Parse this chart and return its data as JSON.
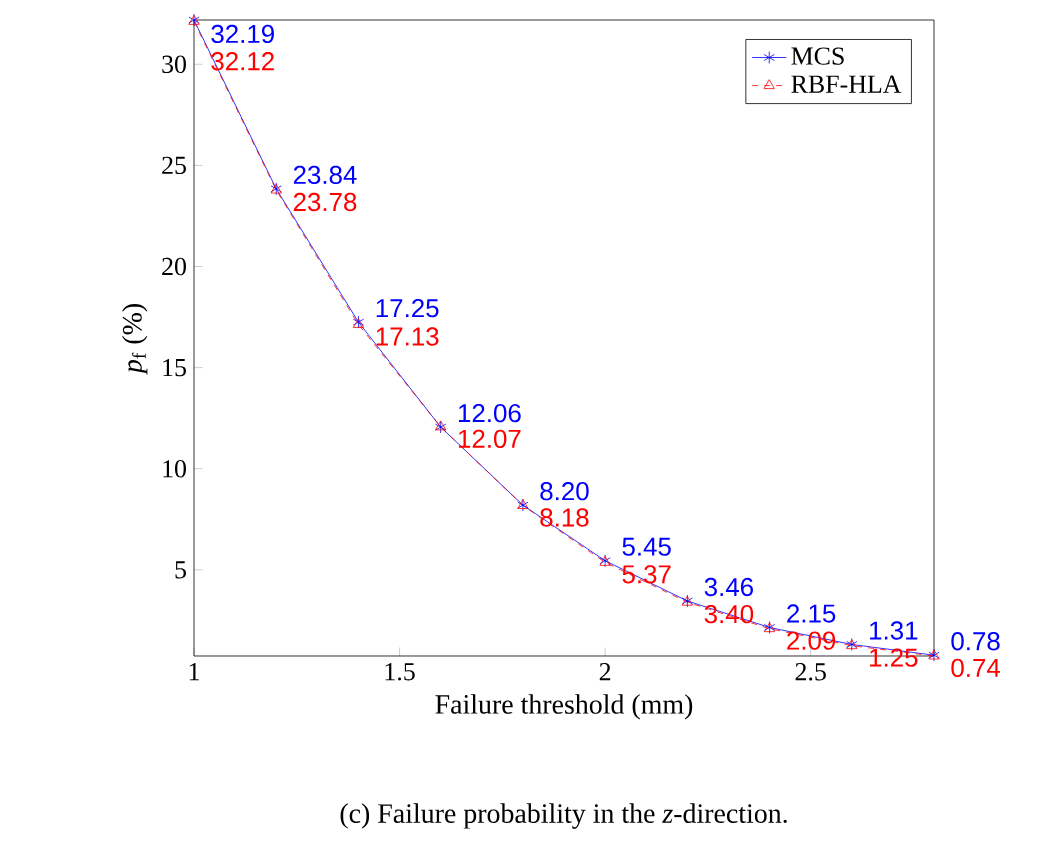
{
  "chart_data": {
    "type": "line",
    "xlabel": "Failure threshold (mm)",
    "ylabel": "*p*$_{f}$ (%)",
    "x": [
      1,
      1.2,
      1.4,
      1.6,
      1.8,
      2,
      2.2,
      2.4,
      2.6,
      2.8
    ],
    "series": [
      {
        "name": "MCS",
        "color": "#0000ff",
        "marker": "cross",
        "line_style": "solid",
        "values": [
          32.19,
          23.84,
          17.25,
          12.06,
          8.2,
          5.45,
          3.46,
          2.15,
          1.31,
          0.78
        ],
        "value_labels": [
          "32.19",
          "23.84",
          "17.25",
          "12.06",
          "8.20",
          "5.45",
          "3.46",
          "2.15",
          "1.31",
          "0.78"
        ]
      },
      {
        "name": "RBF-HLA",
        "color": "#ff0000",
        "marker": "triangle",
        "line_style": "dashed",
        "values": [
          32.12,
          23.78,
          17.13,
          12.07,
          8.18,
          5.37,
          3.4,
          2.09,
          1.25,
          0.74
        ],
        "value_labels": [
          "32.12",
          "23.78",
          "17.13",
          "12.07",
          "8.18",
          "5.37",
          "3.40",
          "2.09",
          "1.25",
          "0.74"
        ]
      }
    ],
    "xlim": [
      1,
      2.8
    ],
    "ylim": [
      0.74,
      32.19
    ],
    "xticks": [
      1,
      1.5,
      2,
      2.5
    ],
    "yticks": [
      5,
      10,
      15,
      20,
      25,
      30
    ],
    "legend": "top right",
    "grid": false,
    "annotations": [
      "(c) Failure probability in the *z*-direction."
    ]
  }
}
